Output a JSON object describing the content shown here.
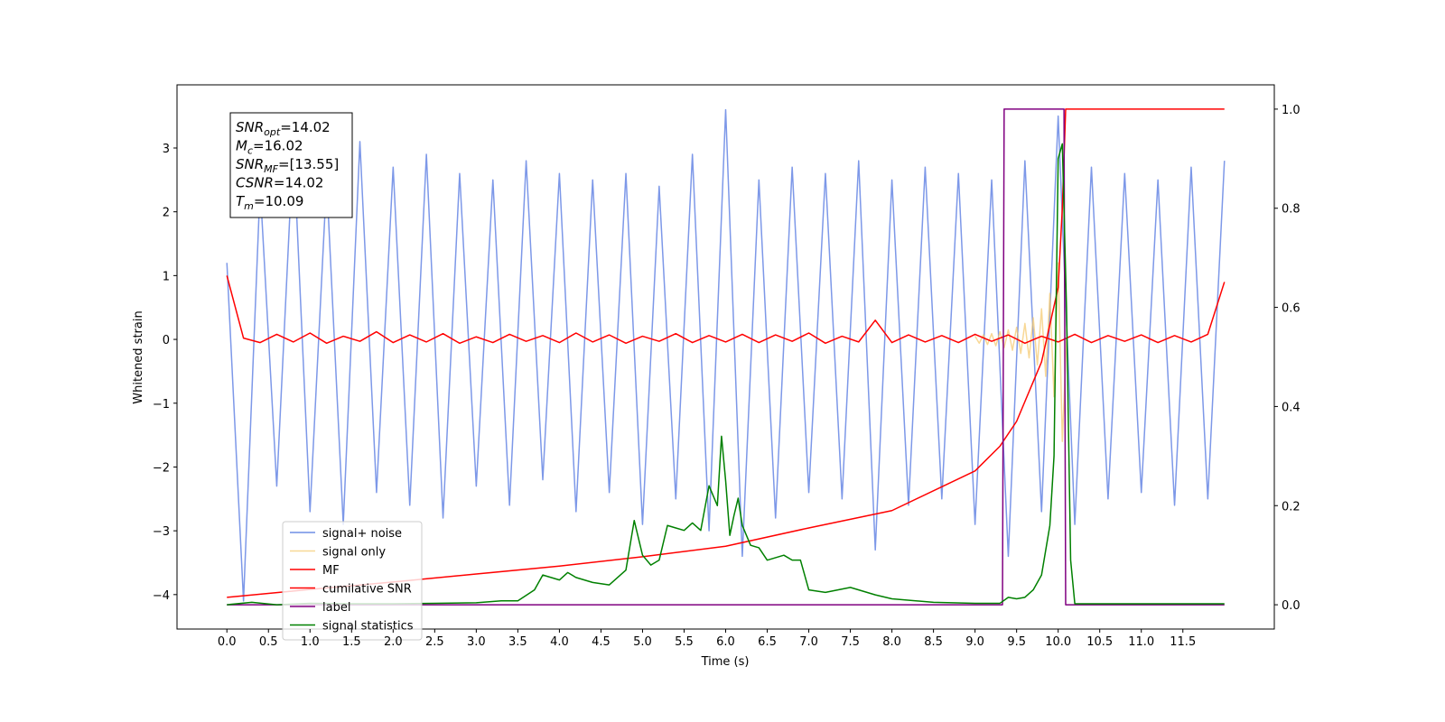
{
  "chart_data": {
    "type": "line",
    "xlabel": "Time (s)",
    "ylabel": "Whitened strain",
    "xlim": [
      -0.6,
      12.6
    ],
    "ylim": [
      -4.54,
      3.99
    ],
    "y2lim": [
      -0.049,
      1.049
    ],
    "xticks": [
      {
        "value": 0,
        "label": "0.0"
      },
      {
        "value": 0.5,
        "label": "0.5"
      },
      {
        "value": 1,
        "label": "1.0"
      },
      {
        "value": 1.5,
        "label": "1.5"
      },
      {
        "value": 2,
        "label": "2.0"
      },
      {
        "value": 2.5,
        "label": "2.5"
      },
      {
        "value": 3,
        "label": "3.0"
      },
      {
        "value": 3.5,
        "label": "3.5"
      },
      {
        "value": 4,
        "label": "4.0"
      },
      {
        "value": 4.5,
        "label": "4.5"
      },
      {
        "value": 5,
        "label": "5.0"
      },
      {
        "value": 5.5,
        "label": "5.5"
      },
      {
        "value": 6,
        "label": "6.0"
      },
      {
        "value": 6.5,
        "label": "6.5"
      },
      {
        "value": 7,
        "label": "7.0"
      },
      {
        "value": 7.5,
        "label": "7.5"
      },
      {
        "value": 8,
        "label": "8.0"
      },
      {
        "value": 8.5,
        "label": "8.5"
      },
      {
        "value": 9,
        "label": "9.0"
      },
      {
        "value": 9.5,
        "label": "9.5"
      },
      {
        "value": 10,
        "label": "10.0"
      },
      {
        "value": 10.5,
        "label": "10.5"
      },
      {
        "value": 11,
        "label": "11.0"
      },
      {
        "value": 11.5,
        "label": "11.5"
      }
    ],
    "yticks": [
      {
        "value": -4,
        "label": "−4"
      },
      {
        "value": -3,
        "label": "−3"
      },
      {
        "value": -2,
        "label": "−2"
      },
      {
        "value": -1,
        "label": "−1"
      },
      0,
      1,
      2,
      3
    ],
    "y2ticks": [
      {
        "value": 0,
        "label": "0.0"
      },
      {
        "value": 0.2,
        "label": "0.2"
      },
      {
        "value": 0.4,
        "label": "0.4"
      },
      {
        "value": 0.6,
        "label": "0.6"
      },
      {
        "value": 0.8,
        "label": "0.8"
      },
      {
        "value": 1,
        "label": "1.0"
      }
    ],
    "legend_loc": "lower left",
    "annotation": [
      {
        "symbol": "SNR",
        "subscript": "opt",
        "text": "=14.02"
      },
      {
        "symbol": "M",
        "subscript": "c",
        "text": "=16.02"
      },
      {
        "symbol": "SNR",
        "subscript": "MF",
        "text": "=[13.55]"
      },
      {
        "symbol": "CSNR",
        "text": "=14.02"
      },
      {
        "symbol": "T",
        "subscript": "m",
        "text": "=10.09"
      }
    ],
    "series": [
      {
        "name": "signal+ noise",
        "color": "#6f8de6",
        "x": [
          0,
          0.2,
          0.4,
          0.6,
          0.8,
          1,
          1.2,
          1.4,
          1.6,
          1.8,
          2,
          2.2,
          2.4,
          2.6,
          2.8,
          3,
          3.2,
          3.4,
          3.6,
          3.8,
          4,
          4.2,
          4.4,
          4.6,
          4.8,
          5,
          5.2,
          5.4,
          5.6,
          5.8,
          6,
          6.2,
          6.4,
          6.6,
          6.8,
          7,
          7.2,
          7.4,
          7.6,
          7.8,
          8,
          8.2,
          8.4,
          8.6,
          8.8,
          9,
          9.2,
          9.4,
          9.6,
          9.8,
          10,
          10.2,
          10.4,
          10.6,
          10.8,
          11,
          11.2,
          11.4,
          11.6,
          11.8,
          12
        ],
        "values": [
          1.2,
          -4.1,
          2.4,
          -2.3,
          3.1,
          -2.7,
          2.5,
          -2.9,
          3.1,
          -2.4,
          2.7,
          -2.6,
          2.9,
          -2.8,
          2.6,
          -2.3,
          2.5,
          -2.6,
          2.8,
          -2.2,
          2.6,
          -2.7,
          2.5,
          -2.4,
          2.6,
          -2.9,
          2.4,
          -2.5,
          2.9,
          -3.0,
          3.6,
          -3.4,
          2.5,
          -2.8,
          2.7,
          -2.4,
          2.6,
          -2.5,
          2.8,
          -3.3,
          2.5,
          -2.6,
          2.7,
          -2.5,
          2.6,
          -2.9,
          2.5,
          -3.4,
          2.8,
          -2.7,
          3.5,
          -2.9,
          2.7,
          -2.5,
          2.6,
          -2.4,
          2.5,
          -2.6,
          2.7,
          -2.5,
          2.8
        ]
      },
      {
        "name": "signal only",
        "color": "#f5c86a",
        "x": [
          9.0,
          9.05,
          9.1,
          9.15,
          9.2,
          9.25,
          9.3,
          9.35,
          9.4,
          9.45,
          9.5,
          9.55,
          9.6,
          9.65,
          9.7,
          9.75,
          9.8,
          9.85,
          9.9,
          9.95,
          10.0,
          10.05,
          10.1
        ],
        "values": [
          0.05,
          -0.06,
          0.07,
          -0.08,
          0.09,
          -0.1,
          0.12,
          -0.13,
          0.15,
          -0.17,
          0.19,
          -0.22,
          0.25,
          -0.29,
          0.34,
          -0.4,
          0.48,
          -0.58,
          0.72,
          -0.9,
          1.2,
          -1.6,
          0
        ]
      },
      {
        "name": "MF",
        "color": "red",
        "x": [
          0,
          0.2,
          0.4,
          0.6,
          0.8,
          1,
          1.2,
          1.4,
          1.6,
          1.8,
          2,
          2.2,
          2.4,
          2.6,
          2.8,
          3,
          3.2,
          3.4,
          3.6,
          3.8,
          4,
          4.2,
          4.4,
          4.6,
          4.8,
          5,
          5.2,
          5.4,
          5.6,
          5.8,
          6,
          6.2,
          6.4,
          6.6,
          6.8,
          7,
          7.2,
          7.4,
          7.6,
          7.8,
          8,
          8.2,
          8.4,
          8.6,
          8.8,
          9,
          9.2,
          9.4,
          9.6,
          9.8,
          10,
          10.2,
          10.4,
          10.6,
          10.8,
          11,
          11.2,
          11.4,
          11.6,
          11.8,
          12
        ],
        "values": [
          1.0,
          0.02,
          -0.05,
          0.08,
          -0.04,
          0.1,
          -0.06,
          0.05,
          -0.03,
          0.12,
          -0.05,
          0.07,
          -0.04,
          0.09,
          -0.06,
          0.04,
          -0.05,
          0.08,
          -0.03,
          0.06,
          -0.05,
          0.1,
          -0.04,
          0.07,
          -0.06,
          0.05,
          -0.03,
          0.09,
          -0.05,
          0.06,
          -0.04,
          0.08,
          -0.05,
          0.07,
          -0.03,
          0.1,
          -0.06,
          0.05,
          -0.04,
          0.3,
          -0.05,
          0.07,
          -0.04,
          0.06,
          -0.05,
          0.08,
          -0.03,
          0.07,
          -0.06,
          0.05,
          -0.04,
          0.08,
          -0.05,
          0.06,
          -0.03,
          0.07,
          -0.05,
          0.06,
          -0.04,
          0.08,
          0.9
        ]
      },
      {
        "name": "cumilative SNR",
        "color": "red",
        "axis": "y2",
        "x": [
          0,
          1,
          2,
          3,
          4,
          5,
          6,
          7,
          8,
          9,
          9.3,
          9.5,
          9.8,
          10.0,
          10.05,
          10.09,
          12.0
        ],
        "values": [
          0.015,
          0.031,
          0.046,
          0.062,
          0.078,
          0.097,
          0.118,
          0.155,
          0.19,
          0.27,
          0.32,
          0.37,
          0.49,
          0.64,
          0.8,
          1.0,
          1.0
        ]
      },
      {
        "name": "label",
        "color": "purple",
        "axis": "y2",
        "x": [
          0,
          9.33,
          9.35,
          10.07,
          10.09,
          12.0
        ],
        "values": [
          0,
          0,
          1,
          1,
          0,
          0
        ]
      },
      {
        "name": "signal statistics",
        "color": "green",
        "axis": "y2",
        "x": [
          0,
          0.3,
          0.6,
          1,
          1.5,
          2,
          2.5,
          3,
          3.3,
          3.5,
          3.7,
          3.8,
          3.9,
          4.0,
          4.1,
          4.2,
          4.4,
          4.6,
          4.8,
          4.9,
          5.0,
          5.1,
          5.2,
          5.3,
          5.4,
          5.5,
          5.6,
          5.7,
          5.8,
          5.9,
          5.95,
          6.0,
          6.05,
          6.1,
          6.15,
          6.2,
          6.3,
          6.4,
          6.5,
          6.7,
          6.8,
          6.9,
          7.0,
          7.2,
          7.5,
          7.8,
          8.0,
          8.5,
          9.0,
          9.3,
          9.4,
          9.5,
          9.6,
          9.7,
          9.8,
          9.9,
          9.95,
          10.0,
          10.05,
          10.1,
          10.15,
          10.2,
          12.0
        ],
        "values": [
          0.0,
          0.005,
          0.0,
          0.003,
          0.002,
          0.002,
          0.003,
          0.004,
          0.008,
          0.008,
          0.03,
          0.06,
          0.055,
          0.05,
          0.065,
          0.055,
          0.045,
          0.04,
          0.07,
          0.17,
          0.1,
          0.08,
          0.09,
          0.16,
          0.155,
          0.15,
          0.165,
          0.15,
          0.24,
          0.2,
          0.34,
          0.25,
          0.14,
          0.18,
          0.215,
          0.16,
          0.12,
          0.115,
          0.09,
          0.1,
          0.09,
          0.09,
          0.03,
          0.025,
          0.035,
          0.02,
          0.012,
          0.005,
          0.003,
          0.003,
          0.015,
          0.012,
          0.015,
          0.03,
          0.06,
          0.16,
          0.3,
          0.9,
          0.93,
          0.6,
          0.09,
          0.002,
          0.002
        ]
      }
    ]
  }
}
